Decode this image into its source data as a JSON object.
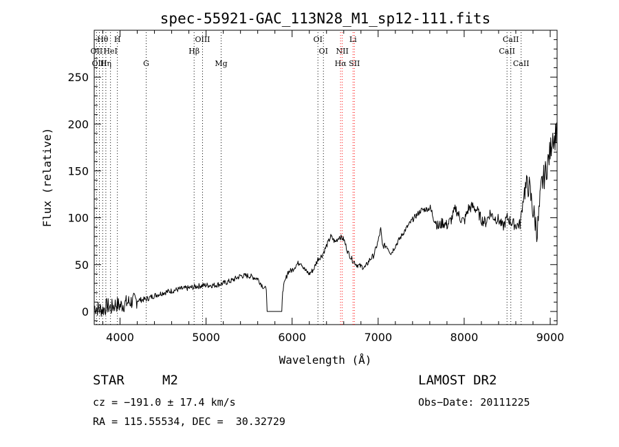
{
  "chart_data": {
    "type": "line",
    "title": "spec-55921-GAC_113N28_M1_sp12-111.fits",
    "xlabel": "Wavelength (Å)",
    "ylabel": "Flux (relative)",
    "xlim": [
      3700,
      9080
    ],
    "ylim": [
      -14,
      300
    ],
    "x_ticks": [
      4000,
      5000,
      6000,
      7000,
      8000,
      9000
    ],
    "y_ticks": [
      0,
      50,
      100,
      150,
      200,
      250
    ],
    "grid": false,
    "series": [
      {
        "x": [
          3700,
          3750,
          3800,
          3850,
          3900,
          3950,
          4000,
          4100,
          4200,
          4300,
          4400,
          4500,
          4600,
          4700,
          4800,
          4900,
          5000,
          5100,
          5200,
          5300,
          5400,
          5500,
          5600,
          5650,
          5700,
          5710,
          5880,
          5890,
          5950,
          6000,
          6050,
          6100,
          6150,
          6200,
          6250,
          6300,
          6350,
          6400,
          6450,
          6500,
          6550,
          6600,
          6650,
          6700,
          6750,
          6800,
          6850,
          6900,
          6950,
          7000,
          7030,
          7050,
          7100,
          7150,
          7200,
          7300,
          7400,
          7500,
          7600,
          7650,
          7700,
          7750,
          7800,
          7850,
          7900,
          7950,
          8000,
          8050,
          8100,
          8150,
          8200,
          8250,
          8300,
          8350,
          8400,
          8450,
          8500,
          8550,
          8600,
          8650,
          8700,
          8750,
          8800,
          8850,
          8900,
          8950,
          9000,
          9030,
          9050,
          9080
        ],
        "y": [
          5,
          3,
          2,
          6,
          4,
          8,
          6,
          10,
          12,
          13,
          17,
          20,
          22,
          24,
          25,
          27,
          28,
          28,
          30,
          33,
          38,
          38,
          35,
          28,
          23,
          0,
          0,
          23,
          42,
          44,
          50,
          53,
          44,
          40,
          45,
          56,
          60,
          70,
          80,
          74,
          80,
          77,
          63,
          55,
          50,
          48,
          47,
          55,
          60,
          75,
          88,
          70,
          70,
          62,
          70,
          85,
          98,
          108,
          110,
          100,
          90,
          95,
          92,
          98,
          110,
          100,
          96,
          110,
          112,
          108,
          98,
          95,
          105,
          100,
          98,
          90,
          100,
          95,
          92,
          93,
          130,
          135,
          108,
          85,
          135,
          150,
          170,
          190,
          182,
          200
        ]
      }
    ],
    "lines": [
      {
        "label": "Hθ",
        "x": 3798,
        "row": 1,
        "color": "#000000"
      },
      {
        "label": "OII",
        "x": 3727,
        "row": 2,
        "color": "#000000"
      },
      {
        "label": "OIII",
        "x": 3760,
        "row": 3,
        "color": "#000000"
      },
      {
        "label": "H",
        "x": 3969,
        "row": 1,
        "color": "#000000"
      },
      {
        "label": "HeI",
        "x": 3889,
        "row": 2,
        "color": "#000000"
      },
      {
        "label": "Hη",
        "x": 3835,
        "row": 3,
        "color": "#000000"
      },
      {
        "label": "G",
        "x": 4304,
        "row": 3,
        "color": "#000000"
      },
      {
        "label": "OIII",
        "x": 4959,
        "row": 1,
        "color": "#000000"
      },
      {
        "label": "Hβ",
        "x": 4861,
        "row": 2,
        "color": "#000000"
      },
      {
        "label": "Mg",
        "x": 5175,
        "row": 3,
        "color": "#000000"
      },
      {
        "label": "OI",
        "x": 6300,
        "row": 1,
        "color": "#000000"
      },
      {
        "label": "OI",
        "x": 6364,
        "row": 2,
        "color": "#000000"
      },
      {
        "label": "Li",
        "x": 6708,
        "row": 1,
        "color": "#ff0000"
      },
      {
        "label": "NII",
        "x": 6583,
        "row": 2,
        "color": "#ff0000"
      },
      {
        "label": "Hα",
        "x": 6563,
        "row": 3,
        "color": "#ff0000"
      },
      {
        "label": "SII",
        "x": 6724,
        "row": 3,
        "color": "#ff0000"
      },
      {
        "label": "CaII",
        "x": 8542,
        "row": 1,
        "color": "#000000"
      },
      {
        "label": "CaII",
        "x": 8498,
        "row": 2,
        "color": "#000000"
      },
      {
        "label": "CaII",
        "x": 8662,
        "row": 3,
        "color": "#000000"
      }
    ]
  },
  "info": {
    "class_label": "STAR",
    "subclass": "M2",
    "redshift": "cz = −191.0 ± 17.4 km/s",
    "coords": "RA = 115.55534, DEC =  30.32729",
    "survey": "LAMOST DR2",
    "obs_date": "Obs−Date: 20111225"
  }
}
